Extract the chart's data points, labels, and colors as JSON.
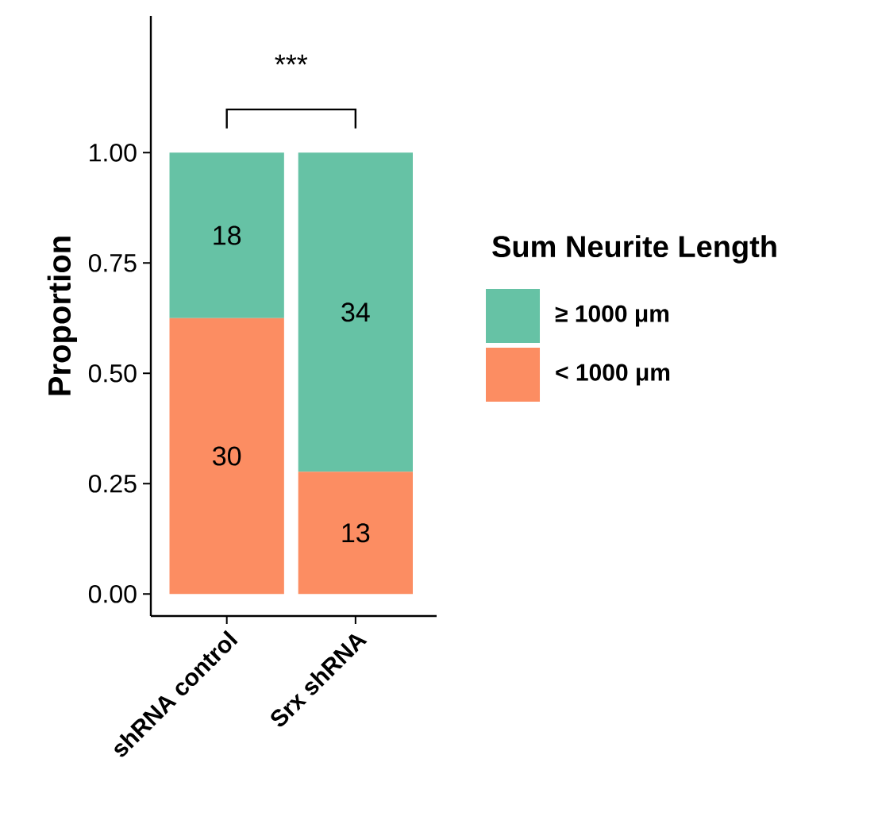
{
  "chart_data": {
    "type": "bar",
    "stacked": true,
    "ylabel": "Proportion",
    "legend_title": "Sum Neurite Length",
    "legend": "right",
    "categories": [
      "shRNA control",
      "Srx shRNA"
    ],
    "series": [
      {
        "name": "< 1000 μm",
        "color": "#fc8d62",
        "values": [
          0.625,
          0.277
        ]
      },
      {
        "name": "≥ 1000 μm",
        "color": "#66c2a5",
        "values": [
          0.375,
          0.723
        ]
      }
    ],
    "ylim": [
      -0.05,
      1.31
    ],
    "yticks": [
      {
        "value": 0,
        "label": "0.00"
      },
      {
        "value": 0.25,
        "label": "0.25"
      },
      {
        "value": 0.5,
        "label": "0.50"
      },
      {
        "value": 0.75,
        "label": "0.75"
      },
      {
        "value": 1,
        "label": "1.00"
      }
    ],
    "annotations": [
      "***",
      "30",
      "13",
      "18",
      "34"
    ]
  }
}
